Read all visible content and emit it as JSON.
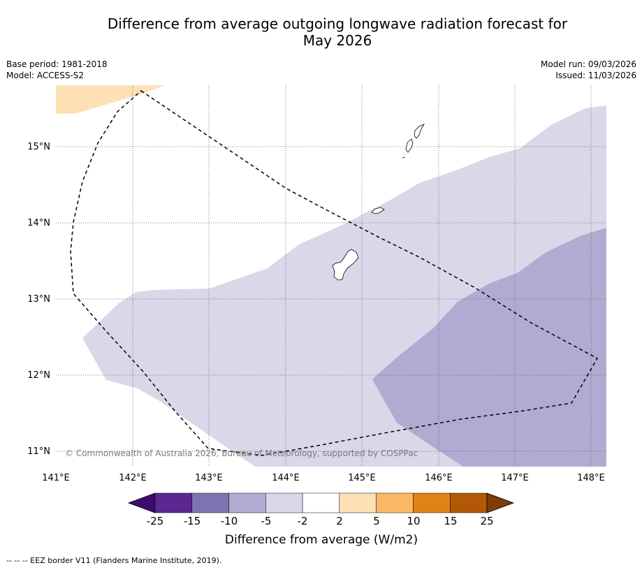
{
  "title": {
    "line1": "Difference from average outgoing longwave radiation forecast for",
    "line2": "May 2026"
  },
  "meta": {
    "base_period": "Base period: 1981-2018",
    "model": "Model: ACCESS-S2",
    "model_run": "Model run: 09/03/2026",
    "issued": "Issued: 11/03/2026"
  },
  "map": {
    "copyright": "© Commonwealth of Australia 2026, Bureau of Meteorology, supported by COSPPac",
    "lat_labels": [
      "15°N",
      "14°N",
      "13°N",
      "12°N",
      "11°N"
    ],
    "lon_labels": [
      "141°E",
      "142°E",
      "143°E",
      "144°E",
      "145°E",
      "146°E",
      "147°E",
      "148°E"
    ],
    "colors": {
      "neg_light": "#d8d8e9",
      "neg_medium": "#b1abd2",
      "pos_light": "#fde0b3",
      "coast": "#000000"
    }
  },
  "colorbar": {
    "title": "Difference from average (W/m2)",
    "ticks": [
      "-25",
      "-15",
      "-10",
      "-5",
      "-2",
      "2",
      "5",
      "10",
      "15",
      "25"
    ],
    "colors": [
      "#3f0a70",
      "#5a2890",
      "#8073b1",
      "#b1abd2",
      "#d8d8e9",
      "#ffffff",
      "#fde0b3",
      "#fbb764",
      "#e08317",
      "#b35806",
      "#7f3b08"
    ]
  },
  "footer": "-- -- -- EEZ border V11 (Flanders Marine Institute, 2019)."
}
